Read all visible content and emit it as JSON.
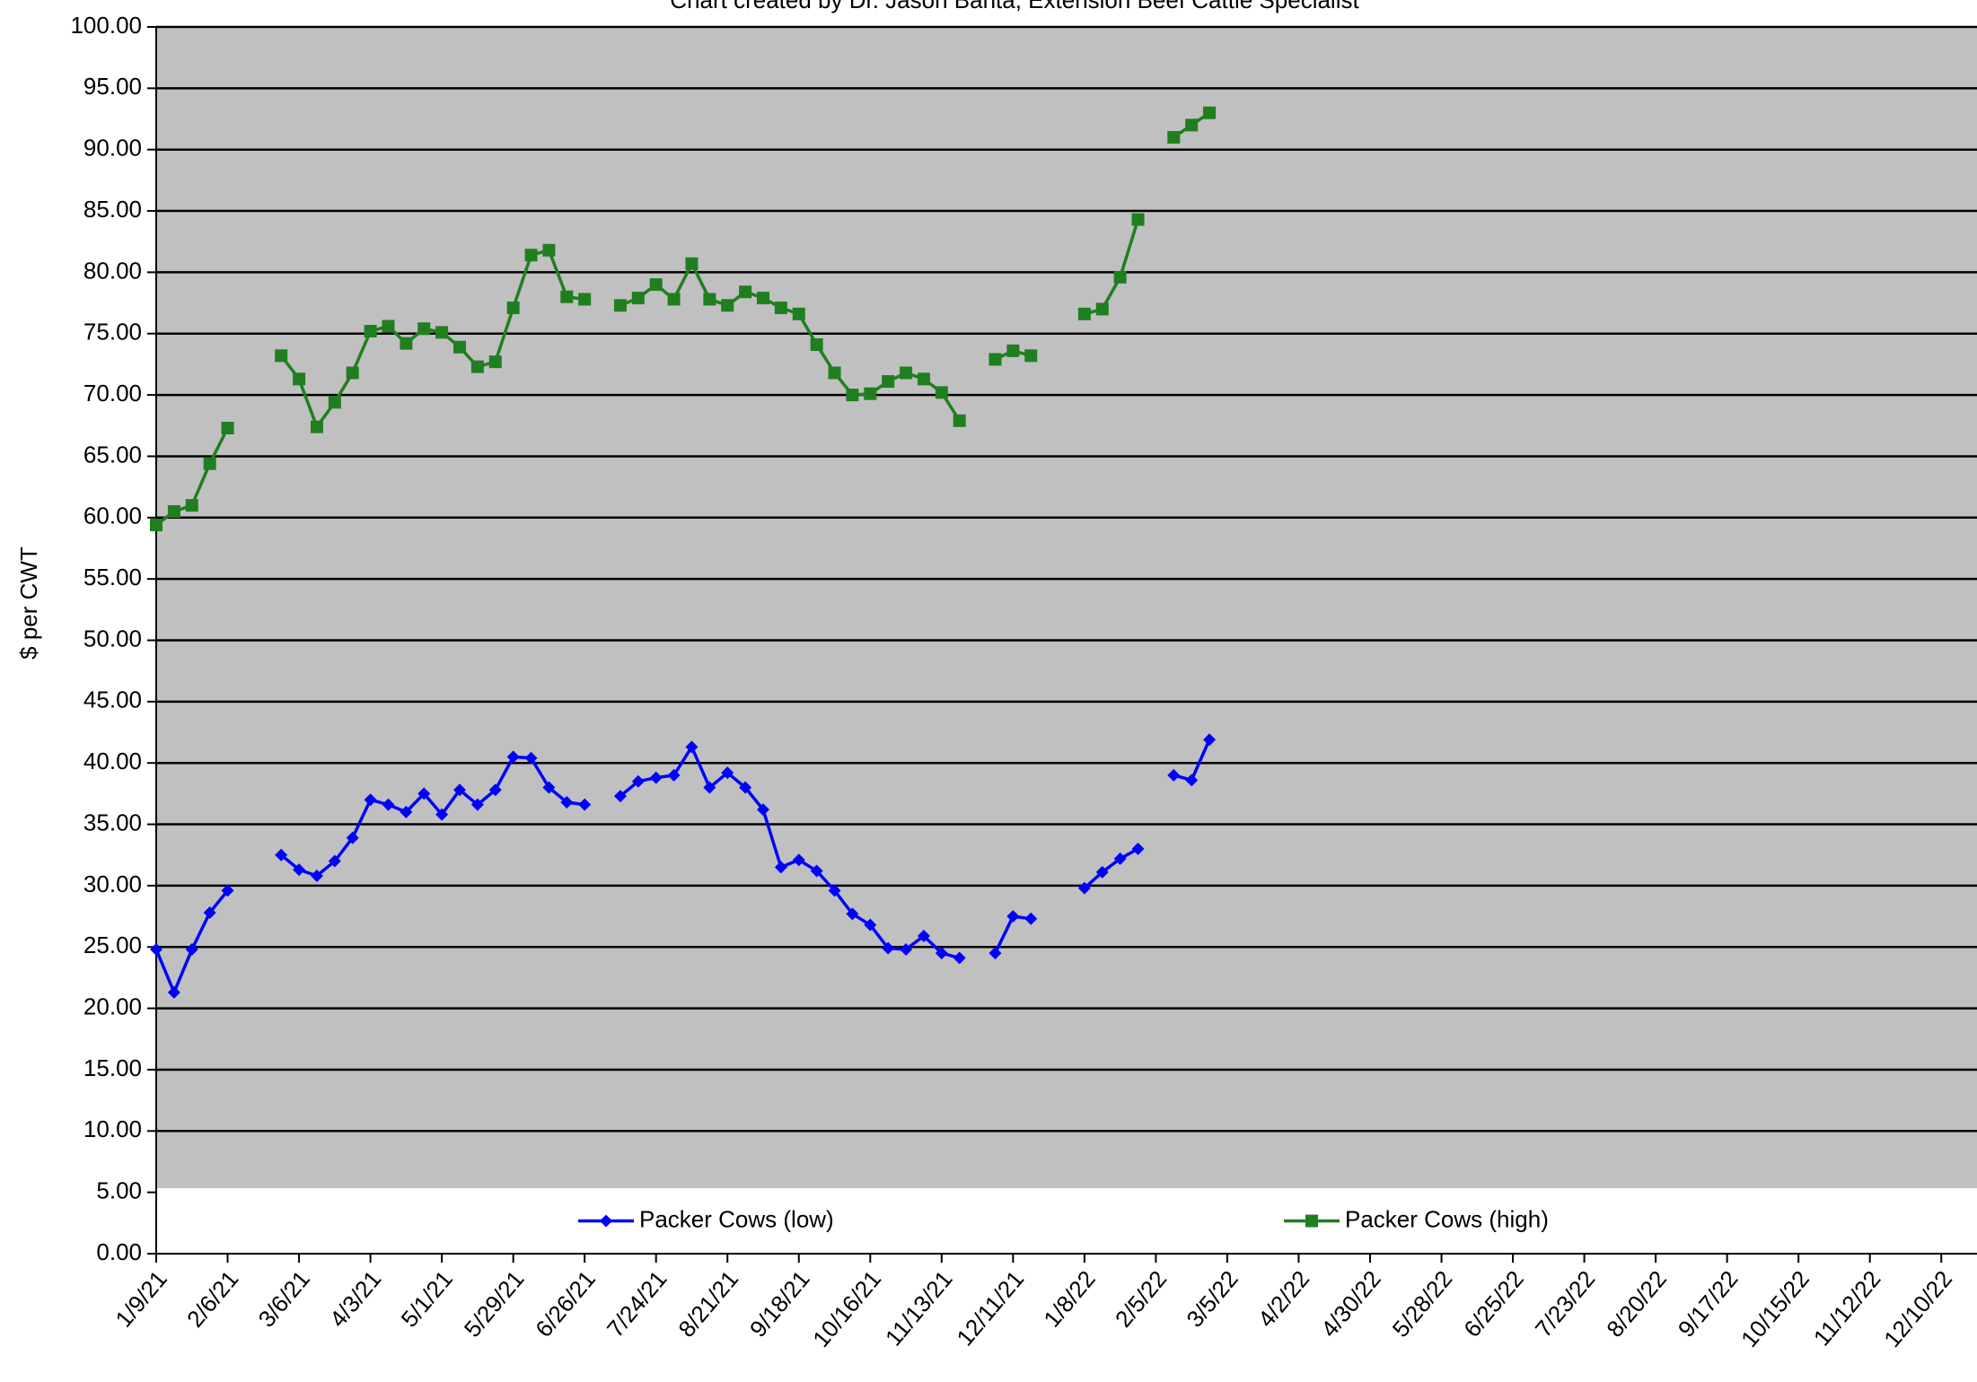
{
  "chart_data": {
    "type": "line",
    "subtitle": "Chart created by Dr. Jason Banta, Extension Beef Cattle Specialist",
    "y_label": "$ per CWT",
    "categories": [
      "1/9/21",
      null,
      null,
      null,
      "2/6/21",
      null,
      null,
      null,
      "3/6/21",
      null,
      null,
      null,
      "4/3/21",
      null,
      null,
      null,
      "5/1/21",
      null,
      null,
      null,
      "5/29/21",
      null,
      null,
      null,
      "6/26/21",
      null,
      null,
      null,
      "7/24/21",
      null,
      null,
      null,
      "8/21/21",
      null,
      null,
      null,
      "9/18/21",
      null,
      null,
      null,
      "10/16/21",
      null,
      null,
      null,
      "11/13/21",
      null,
      null,
      null,
      "12/11/21",
      null,
      null,
      null,
      "1/8/22",
      null,
      null,
      null,
      "2/5/22",
      null,
      null,
      null,
      "3/5/22",
      null,
      null,
      null,
      "4/2/22",
      null,
      null,
      null,
      "4/30/22",
      null,
      null,
      null,
      "5/28/22",
      null,
      null,
      null,
      "6/25/22",
      null,
      null,
      null,
      "7/23/22",
      null,
      null,
      null,
      "8/20/22",
      null,
      null,
      null,
      "9/17/22",
      null,
      null,
      null,
      "10/15/22",
      null,
      null,
      null,
      "11/12/22",
      null,
      null,
      null,
      "12/10/22",
      null,
      null
    ],
    "series": [
      {
        "name": "Packer Cows (low)",
        "color": "#0000ff",
        "marker": "diamond",
        "values": [
          24.8,
          21.3,
          24.8,
          27.8,
          29.6,
          null,
          null,
          32.5,
          31.3,
          30.8,
          32.0,
          33.9,
          37.0,
          36.6,
          36.0,
          37.5,
          35.8,
          37.8,
          36.6,
          37.8,
          40.5,
          40.4,
          38.0,
          36.8,
          36.6,
          null,
          37.3,
          38.5,
          38.8,
          39.0,
          41.3,
          38.0,
          39.2,
          38.0,
          36.2,
          31.5,
          32.1,
          31.2,
          29.6,
          27.7,
          26.8,
          24.9,
          24.8,
          25.9,
          24.5,
          24.1,
          null,
          24.5,
          27.5,
          27.3,
          null,
          null,
          29.8,
          31.1,
          32.2,
          33.0,
          null,
          39.0,
          38.6,
          41.9,
          null,
          null,
          null,
          null,
          null,
          null,
          null,
          null,
          null,
          null,
          null,
          null,
          null,
          null,
          null,
          null,
          null,
          null,
          null,
          null,
          null,
          null,
          null,
          null,
          null,
          null,
          null,
          null,
          null,
          null,
          null,
          null,
          null,
          null,
          null,
          null,
          null,
          null,
          null,
          null,
          null,
          null,
          null
        ]
      },
      {
        "name": "Packer Cows (high)",
        "color": "#1f7f1f",
        "marker": "square",
        "values": [
          59.4,
          60.5,
          61.0,
          64.4,
          67.3,
          null,
          null,
          73.2,
          71.3,
          67.4,
          69.4,
          71.8,
          75.2,
          75.6,
          74.2,
          75.4,
          75.1,
          73.9,
          72.3,
          72.7,
          77.1,
          81.4,
          81.8,
          78.0,
          77.8,
          null,
          77.3,
          77.9,
          79.0,
          77.8,
          80.7,
          77.8,
          77.3,
          78.4,
          77.9,
          77.1,
          76.6,
          74.1,
          71.8,
          70.0,
          70.1,
          71.1,
          71.8,
          71.3,
          70.2,
          67.9,
          null,
          72.9,
          73.6,
          73.2,
          null,
          null,
          76.6,
          77.0,
          79.6,
          84.3,
          null,
          91.0,
          92.0,
          93.0,
          null,
          null,
          null,
          null,
          null,
          null,
          null,
          null,
          null,
          null,
          null,
          null,
          null,
          null,
          null,
          null,
          null,
          null,
          null,
          null,
          null,
          null,
          null,
          null,
          null,
          null,
          null,
          null,
          null,
          null,
          null,
          null,
          null,
          null,
          null,
          null,
          null,
          null,
          null,
          null,
          null,
          null,
          null
        ]
      }
    ],
    "ylim": [
      0,
      100
    ],
    "yticks": [
      {
        "value": 0,
        "label": "0.00"
      },
      {
        "value": 5,
        "label": "5.00"
      },
      {
        "value": 10,
        "label": "10.00"
      },
      {
        "value": 15,
        "label": "15.00"
      },
      {
        "value": 20,
        "label": "20.00"
      },
      {
        "value": 25,
        "label": "25.00"
      },
      {
        "value": 30,
        "label": "30.00"
      },
      {
        "value": 35,
        "label": "35.00"
      },
      {
        "value": 40,
        "label": "40.00"
      },
      {
        "value": 45,
        "label": "45.00"
      },
      {
        "value": 50,
        "label": "50.00"
      },
      {
        "value": 55,
        "label": "55.00"
      },
      {
        "value": 60,
        "label": "60.00"
      },
      {
        "value": 65,
        "label": "65.00"
      },
      {
        "value": 70,
        "label": "70.00"
      },
      {
        "value": 75,
        "label": "75.00"
      },
      {
        "value": 80,
        "label": "80.00"
      },
      {
        "value": 85,
        "label": "85.00"
      },
      {
        "value": 90,
        "label": "90.00"
      },
      {
        "value": 95,
        "label": "95.00"
      },
      {
        "value": 100,
        "label": "100.00"
      }
    ],
    "grid": true,
    "plot_background": "#c0c0c0",
    "legend": "bottom"
  }
}
